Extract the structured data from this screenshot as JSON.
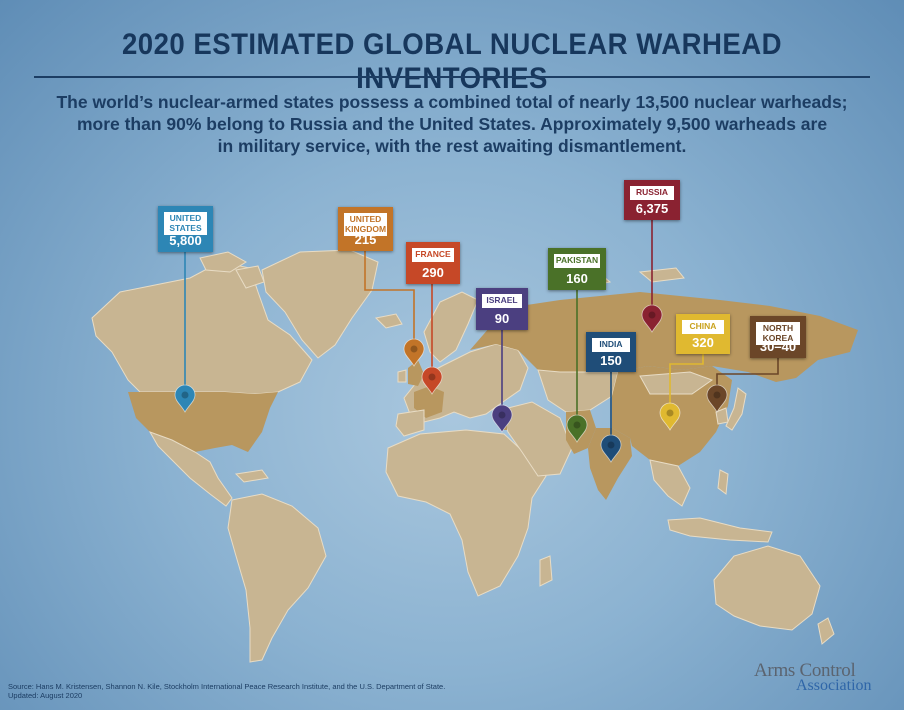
{
  "title": "2020 ESTIMATED GLOBAL NUCLEAR WARHEAD INVENTORIES",
  "subtitle": [
    "The world’s nuclear-armed states possess a combined total of nearly 13,500 nuclear warheads;",
    "more than 90% belong to Russia and the United States. Approximately 9,500 warheads are",
    "in military service, with the rest awaiting dismantlement."
  ],
  "countries": [
    {
      "id": "united-states",
      "name_lines": [
        "UNITED",
        "STATES"
      ],
      "value": "5,800",
      "color": "#2d86b5"
    },
    {
      "id": "united-kingdom",
      "name_lines": [
        "UNITED",
        "KINGDOM"
      ],
      "value": "215",
      "color": "#c27428"
    },
    {
      "id": "france",
      "name_lines": [
        "FRANCE"
      ],
      "value": "290",
      "color": "#c64827"
    },
    {
      "id": "israel",
      "name_lines": [
        "ISRAEL"
      ],
      "value": "90",
      "color": "#4b3f80"
    },
    {
      "id": "pakistan",
      "name_lines": [
        "PAKISTAN"
      ],
      "value": "160",
      "color": "#4a7128"
    },
    {
      "id": "india",
      "name_lines": [
        "INDIA"
      ],
      "value": "150",
      "color": "#1f4d78"
    },
    {
      "id": "russia",
      "name_lines": [
        "RUSSIA"
      ],
      "value": "6,375",
      "color": "#8a2231"
    },
    {
      "id": "china",
      "name_lines": [
        "CHINA"
      ],
      "value": "320",
      "color": "#e0b930"
    },
    {
      "id": "north-korea",
      "name_lines": [
        "NORTH",
        "KOREA"
      ],
      "value": "30–40",
      "color": "#6b4628"
    }
  ],
  "source": [
    "Source: Hans M. Kristensen, Shannon N. Kile, Stockholm International Peace Research Institute, and the U.S. Department of State.",
    "Updated: August 2020"
  ],
  "logo": {
    "line1": "Arms Control",
    "line2": "Association"
  },
  "colors": {
    "title": "#17375c",
    "land": "#c8b592",
    "nuclear_land": "#b8975f",
    "ocean": "#8bb2d1"
  }
}
